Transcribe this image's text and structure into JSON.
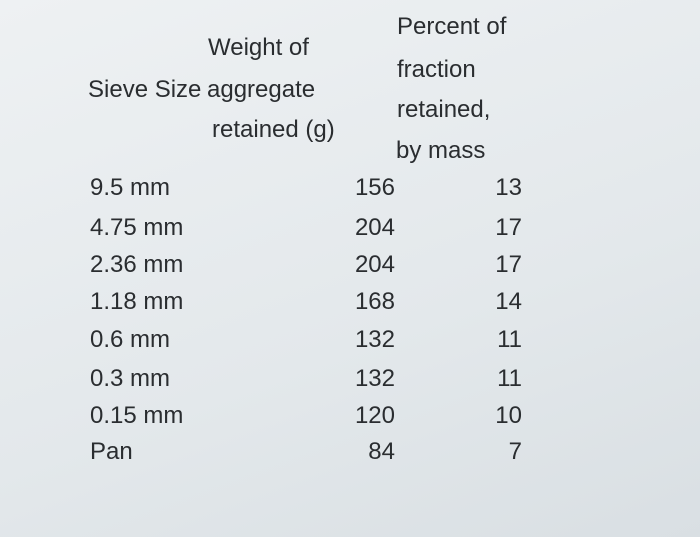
{
  "table": {
    "header": [
      [
        "Sieve Size"
      ],
      [
        "Weight of",
        "aggregate",
        "retained (g)"
      ],
      [
        "Percent of",
        "fraction",
        "retained,",
        "by mass"
      ]
    ],
    "rows": [
      [
        "9.5 mm",
        156,
        13
      ],
      [
        "4.75 mm",
        204,
        17
      ],
      [
        "2.36 mm",
        204,
        17
      ],
      [
        "1.18 mm",
        168,
        14
      ],
      [
        "0.6 mm",
        132,
        11
      ],
      [
        "0.3 mm",
        132,
        11
      ],
      [
        "0.15 mm",
        120,
        10
      ],
      [
        "Pan",
        84,
        7
      ]
    ]
  }
}
